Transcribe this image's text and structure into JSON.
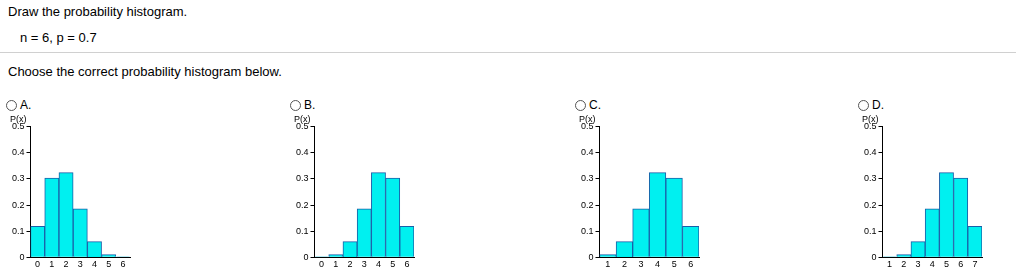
{
  "header": {
    "instruction": "Draw the probability histogram.",
    "parameters": "n = 6, p = 0.7",
    "question": "Choose the correct probability histogram below."
  },
  "choices": [
    "A.",
    "B.",
    "C.",
    "D."
  ],
  "chart_data": [
    {
      "type": "bar",
      "ylabel": "P(x)",
      "categories": [
        "0",
        "1",
        "2",
        "3",
        "4",
        "5",
        "6"
      ],
      "values": [
        0.118,
        0.303,
        0.324,
        0.185,
        0.06,
        0.01,
        0.001
      ],
      "color": "#00f0f0",
      "ylim": [
        0,
        0.5
      ],
      "yticks": [
        0,
        0.1,
        0.2,
        0.3,
        0.4,
        0.5
      ],
      "grid": false
    },
    {
      "type": "bar",
      "ylabel": "P(x)",
      "categories": [
        "0",
        "1",
        "2",
        "3",
        "4",
        "5",
        "6"
      ],
      "values": [
        0.001,
        0.01,
        0.06,
        0.185,
        0.324,
        0.303,
        0.118
      ],
      "color": "#00f0f0",
      "ylim": [
        0,
        0.5
      ],
      "yticks": [
        0,
        0.1,
        0.2,
        0.3,
        0.4,
        0.5
      ],
      "grid": false
    },
    {
      "type": "bar",
      "ylabel": "P(x)",
      "categories": [
        "1",
        "2",
        "3",
        "4",
        "5",
        "6"
      ],
      "values": [
        0.01,
        0.06,
        0.185,
        0.324,
        0.303,
        0.118
      ],
      "color": "#00f0f0",
      "ylim": [
        0,
        0.5
      ],
      "yticks": [
        0,
        0.1,
        0.2,
        0.3,
        0.4,
        0.5
      ],
      "grid": false
    },
    {
      "type": "bar",
      "ylabel": "P(x)",
      "categories": [
        "1",
        "2",
        "3",
        "4",
        "5",
        "6",
        "7"
      ],
      "values": [
        0.001,
        0.01,
        0.06,
        0.185,
        0.324,
        0.303,
        0.118
      ],
      "color": "#00f0f0",
      "ylim": [
        0,
        0.5
      ],
      "yticks": [
        0,
        0.1,
        0.2,
        0.3,
        0.4,
        0.5
      ],
      "grid": false
    }
  ]
}
